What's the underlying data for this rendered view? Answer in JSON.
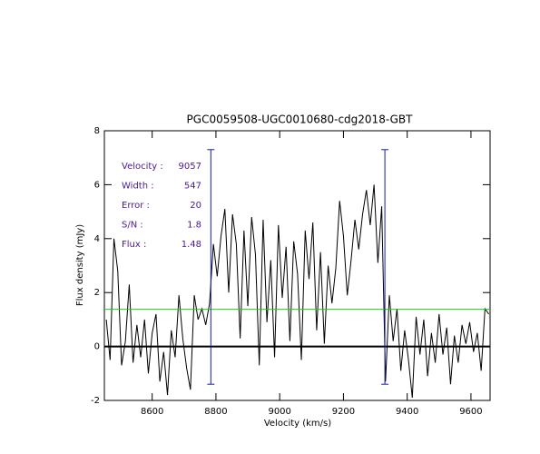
{
  "chart_data": {
    "type": "line",
    "title": "PGC0059508-UGC0010680-cdg2018-GBT",
    "xlabel": "Velocity (km/s)",
    "ylabel": "Flux density (mJy)",
    "xlim": [
      8450,
      9660
    ],
    "ylim": [
      -2,
      8
    ],
    "xticks": [
      8600,
      8800,
      9000,
      9200,
      9400,
      9600
    ],
    "yticks": [
      -2,
      0,
      2,
      4,
      6,
      8
    ],
    "x": [
      8456,
      8468,
      8480,
      8492,
      8504,
      8516,
      8528,
      8540,
      8552,
      8564,
      8576,
      8588,
      8600,
      8612,
      8624,
      8636,
      8648,
      8660,
      8672,
      8684,
      8696,
      8708,
      8720,
      8732,
      8744,
      8756,
      8768,
      8780,
      8792,
      8804,
      8816,
      8828,
      8840,
      8852,
      8864,
      8876,
      8888,
      8900,
      8912,
      8924,
      8936,
      8948,
      8960,
      8972,
      8984,
      8996,
      9008,
      9020,
      9032,
      9044,
      9056,
      9068,
      9080,
      9092,
      9104,
      9116,
      9128,
      9140,
      9152,
      9164,
      9176,
      9188,
      9200,
      9212,
      9224,
      9236,
      9248,
      9260,
      9272,
      9284,
      9296,
      9308,
      9320,
      9332,
      9344,
      9356,
      9368,
      9380,
      9392,
      9404,
      9416,
      9428,
      9440,
      9452,
      9464,
      9476,
      9488,
      9500,
      9512,
      9524,
      9536,
      9548,
      9560,
      9572,
      9584,
      9596,
      9608,
      9620,
      9632,
      9644,
      9656
    ],
    "series": [
      {
        "color": "#000000",
        "values": [
          1.0,
          -0.5,
          4.0,
          2.8,
          -0.7,
          0.2,
          2.3,
          -0.6,
          0.8,
          -0.4,
          1.0,
          -1.0,
          0.5,
          1.2,
          -1.3,
          -0.2,
          -1.8,
          0.6,
          -0.4,
          1.9,
          0.3,
          -0.8,
          -1.6,
          1.9,
          1.0,
          1.4,
          0.8,
          1.6,
          3.8,
          2.6,
          4.1,
          5.1,
          2.0,
          4.9,
          3.8,
          0.3,
          4.3,
          1.5,
          4.8,
          3.4,
          -0.7,
          4.7,
          0.9,
          3.2,
          -0.4,
          4.5,
          1.8,
          3.7,
          0.2,
          3.9,
          2.7,
          -0.5,
          4.3,
          2.5,
          4.6,
          0.6,
          3.5,
          0.1,
          3.0,
          1.6,
          2.9,
          5.4,
          4.1,
          1.9,
          3.2,
          4.7,
          3.6,
          4.9,
          5.8,
          4.5,
          6.0,
          3.1,
          5.2,
          -1.3,
          1.9,
          0.2,
          1.4,
          -0.9,
          0.6,
          -0.5,
          -1.9,
          1.1,
          -0.3,
          1.0,
          -1.1,
          0.5,
          -0.6,
          1.2,
          -0.3,
          0.7,
          -1.4,
          0.4,
          -0.6,
          0.8,
          0.1,
          0.9,
          -0.2,
          0.5,
          -0.9,
          1.4,
          1.2
        ]
      }
    ],
    "hlines": [
      {
        "value": 0,
        "color": "#000000"
      },
      {
        "value": 1.38,
        "color": "#22cc22"
      }
    ],
    "markers": {
      "color": "#1a1aa8",
      "lines": [
        {
          "x": 8784,
          "top": 7.3,
          "bottom": -1.4
        },
        {
          "x": 9330,
          "top": 7.3,
          "bottom": -1.4
        }
      ]
    },
    "info_color": "#4a1a90",
    "info": [
      {
        "label": "Velocity :",
        "value": 9057
      },
      {
        "label": "Width :",
        "value": 547
      },
      {
        "label": "Error :",
        "value": 20
      },
      {
        "label": "S/N :",
        "value": 1.8
      },
      {
        "label": "Flux :",
        "value": 1.48
      }
    ]
  }
}
